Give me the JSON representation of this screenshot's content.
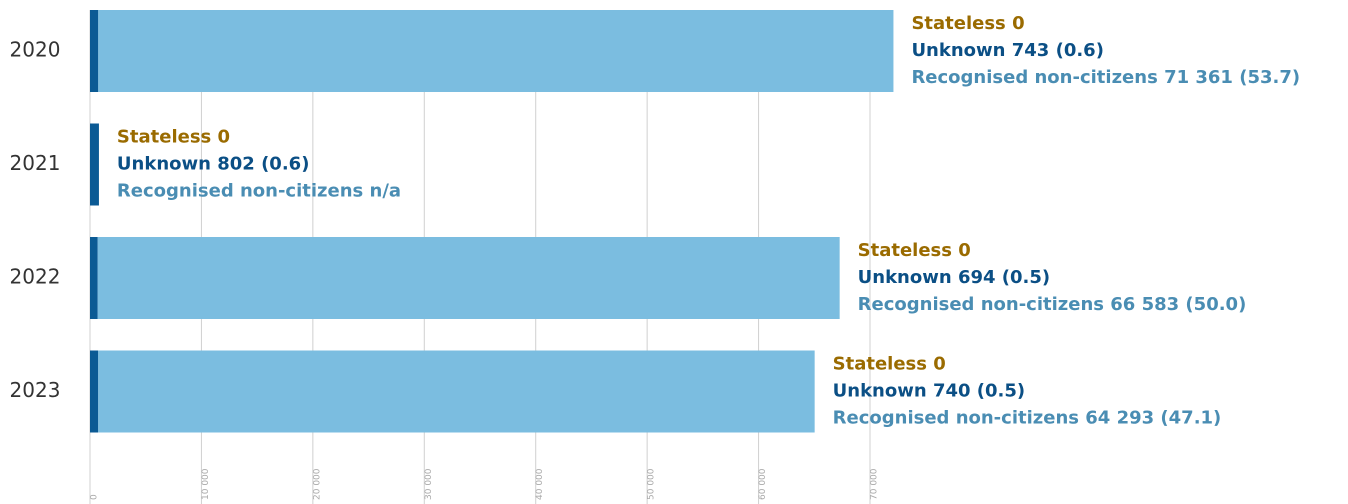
{
  "chart_data": {
    "type": "stacked-bar-horizontal",
    "categories": [
      "2020",
      "2021",
      "2022",
      "2023"
    ],
    "series": [
      {
        "name": "Stateless",
        "color": "#9a6b00",
        "label_color": "#9a6b00",
        "values": [
          0,
          0,
          0,
          0
        ],
        "value_labels": [
          "0",
          "0",
          "0",
          "0"
        ]
      },
      {
        "name": "Unknown",
        "color": "#0b5a94",
        "label_color": "#0b4f85",
        "values": [
          743,
          802,
          694,
          740
        ],
        "value_labels": [
          "743 (0.6)",
          "802 (0.6)",
          "694 (0.5)",
          "740 (0.5)"
        ]
      },
      {
        "name": "Recognised non-citizens",
        "color": "#7bbde0",
        "label_color": "#4a8db3",
        "values": [
          71361,
          null,
          66583,
          64293
        ],
        "value_labels": [
          "71 361 (53.7)",
          "n/a",
          "66 583 (50.0)",
          "64 293 (47.1)"
        ]
      }
    ],
    "xlim": [
      0,
      70000
    ],
    "xticks": [
      0,
      {
        "value": 10000,
        "label": "10 000"
      },
      {
        "value": 20000,
        "label": "20 000"
      },
      {
        "value": 30000,
        "label": "30 000"
      },
      {
        "value": 40000,
        "label": "40 000"
      },
      {
        "value": 50000,
        "label": "50 000"
      },
      {
        "value": 60000,
        "label": "60 000"
      },
      {
        "value": 70000,
        "label": "70 000"
      }
    ],
    "grid": true
  }
}
